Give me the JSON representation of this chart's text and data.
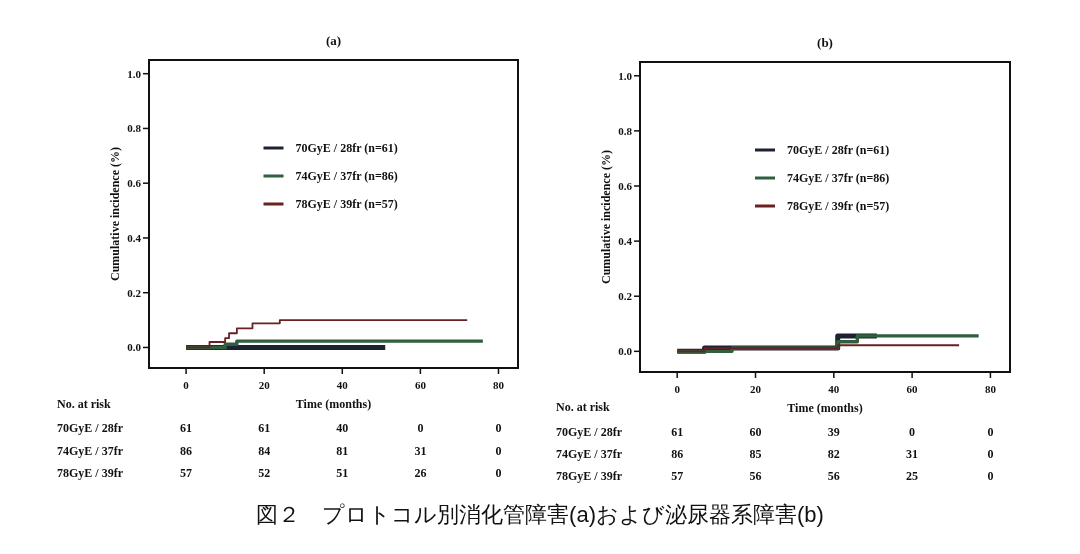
{
  "chart_data": [
    {
      "type": "step",
      "title": "(a)",
      "xlabel": "Time (months)",
      "ylabel": "Cumulative incidence (%)",
      "xlim": [
        -9.5,
        85
      ],
      "ylim": [
        -0.075,
        1.05
      ],
      "xticks": [
        0,
        20,
        40,
        60,
        80
      ],
      "yticks": [
        {
          "value": 0,
          "label": "0.0"
        },
        {
          "value": 0.2,
          "label": "0.2"
        },
        {
          "value": 0.4,
          "label": "0.4"
        },
        {
          "value": 0.6,
          "label": "0.6"
        },
        {
          "value": 0.8,
          "label": "0.8"
        },
        {
          "value": 1,
          "label": "1.0"
        }
      ],
      "legend": "top",
      "series": [
        {
          "name": "70GyE / 28fr (n=61)",
          "color": "#1c2233",
          "x": [
            0,
            51
          ],
          "values": [
            0,
            0
          ]
        },
        {
          "name": "74GyE / 37fr (n=86)",
          "color": "#2f5f3c",
          "x": [
            0,
            10,
            13,
            76
          ],
          "values": [
            0,
            0.012,
            0.023,
            0.023
          ]
        },
        {
          "name": "78GyE / 39fr (n=57)",
          "color": "#6a2020",
          "x": [
            0,
            6,
            10,
            11,
            13,
            17,
            24,
            72
          ],
          "values": [
            0,
            0.02,
            0.034,
            0.052,
            0.07,
            0.088,
            0.1,
            0.1
          ]
        }
      ],
      "annotations": [
        "No. at risk",
        "70GyE / 28fr",
        "61",
        "61",
        "40",
        "0",
        "0",
        "74GyE / 37fr",
        "86",
        "84",
        "81",
        "31",
        "0",
        "78GyE / 39fr",
        "57",
        "52",
        "51",
        "26",
        "0"
      ]
    },
    {
      "type": "step",
      "title": "(b)",
      "xlabel": "Time (months)",
      "ylabel": "Cumulative incidence (%)",
      "xlim": [
        -9.5,
        85
      ],
      "ylim": [
        -0.075,
        1.05
      ],
      "xticks": [
        0,
        20,
        40,
        60,
        80
      ],
      "yticks": [
        {
          "value": 0,
          "label": "0.0"
        },
        {
          "value": 0.2,
          "label": "0.2"
        },
        {
          "value": 0.4,
          "label": "0.4"
        },
        {
          "value": 0.6,
          "label": "0.6"
        },
        {
          "value": 0.8,
          "label": "0.8"
        },
        {
          "value": 1,
          "label": "1.0"
        }
      ],
      "legend": "top",
      "series": [
        {
          "name": "70GyE / 28fr (n=61)",
          "color": "#1c2233",
          "x": [
            0,
            7,
            41,
            51
          ],
          "values": [
            0,
            0.012,
            0.056,
            0.056
          ]
        },
        {
          "name": "74GyE / 37fr (n=86)",
          "color": "#2f5f3c",
          "x": [
            0,
            14,
            41,
            46,
            77
          ],
          "values": [
            0,
            0.012,
            0.035,
            0.056,
            0.056
          ]
        },
        {
          "name": "78GyE / 39fr (n=57)",
          "color": "#6a2020",
          "x": [
            0,
            7,
            41,
            72
          ],
          "values": [
            0,
            0.012,
            0.022,
            0.022
          ]
        }
      ],
      "annotations": [
        "No. at risk",
        "70GyE / 28fr",
        "61",
        "60",
        "39",
        "0",
        "0",
        "74GyE / 37fr",
        "86",
        "85",
        "82",
        "31",
        "0",
        "78GyE / 39fr",
        "57",
        "56",
        "56",
        "25",
        "0"
      ]
    },
    {
      "type": "other",
      "annotations": [
        "図２　プロトコル別消化管障害(a)および泌尿器系障害(b)"
      ]
    }
  ]
}
